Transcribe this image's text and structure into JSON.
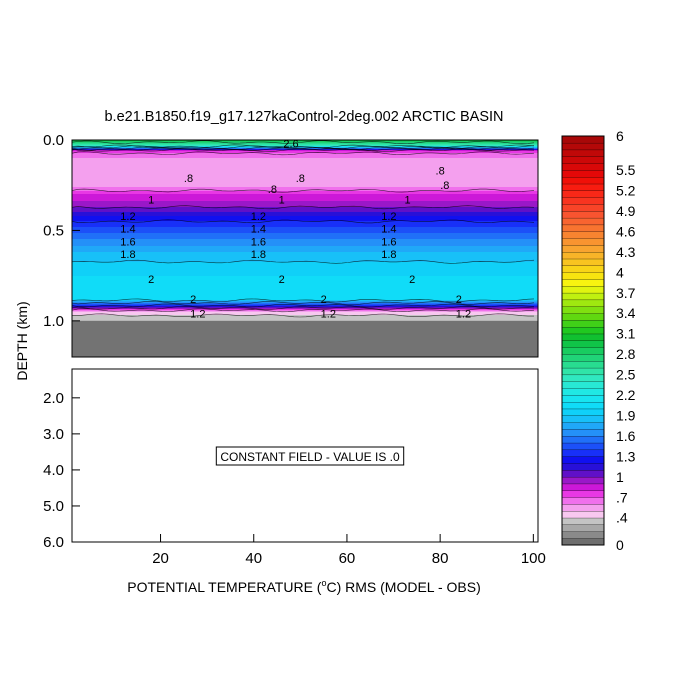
{
  "chart_data": {
    "type": "heatmap",
    "title": "b.e21.B1850.f19_g17.127kaControl-2deg.002 ARCTIC BASIN",
    "ylabel": "DEPTH (km)",
    "xlabel_prefix": "POTENTIAL TEMPERATURE (",
    "xlabel_unit_super": "o",
    "xlabel_suffix": "C) RMS (MODEL - OBS)",
    "xlim": [
      1,
      101
    ],
    "x_ticks": [
      "20",
      "40",
      "60",
      "80",
      "100"
    ],
    "x_tick_values": [
      20,
      40,
      60,
      80,
      100
    ],
    "upper_panel": {
      "ylim": [
        0,
        1.2
      ],
      "y_ticks": [
        "0.0",
        "0.5",
        "1.0"
      ],
      "y_tick_values": [
        0,
        0.5,
        1.0
      ],
      "bottom_depth_km": 1.0,
      "depth_profile": [
        {
          "depth": 0.0,
          "value": 3.0
        },
        {
          "depth": 0.03,
          "value": 2.5
        },
        {
          "depth": 0.06,
          "value": 0.75
        },
        {
          "depth": 0.1,
          "value": 0.6
        },
        {
          "depth": 0.15,
          "value": 0.55
        },
        {
          "depth": 0.25,
          "value": 0.55
        },
        {
          "depth": 0.3,
          "value": 0.8
        },
        {
          "depth": 0.36,
          "value": 0.95
        },
        {
          "depth": 0.42,
          "value": 1.2
        },
        {
          "depth": 0.48,
          "value": 1.4
        },
        {
          "depth": 0.55,
          "value": 1.6
        },
        {
          "depth": 0.62,
          "value": 1.8
        },
        {
          "depth": 0.7,
          "value": 1.95
        },
        {
          "depth": 0.75,
          "value": 2.0
        },
        {
          "depth": 0.88,
          "value": 2.05
        },
        {
          "depth": 0.92,
          "value": 1.2
        },
        {
          "depth": 0.95,
          "value": 0.5
        },
        {
          "depth": 0.98,
          "value": 0.35
        },
        {
          "depth": 1.0,
          "value": 0.3
        }
      ],
      "contour_labels": [
        {
          "text": "2.6",
          "x": 48,
          "depth": 0.02
        },
        {
          "text": ".8",
          "x": 26,
          "depth": 0.21
        },
        {
          "text": ".8",
          "x": 50,
          "depth": 0.21
        },
        {
          "text": ".8",
          "x": 80,
          "depth": 0.17
        },
        {
          "text": ".8",
          "x": 44,
          "depth": 0.27
        },
        {
          "text": ".8",
          "x": 81,
          "depth": 0.25
        },
        {
          "text": "1",
          "x": 18,
          "depth": 0.33
        },
        {
          "text": "1",
          "x": 46,
          "depth": 0.33
        },
        {
          "text": "1",
          "x": 73,
          "depth": 0.33
        },
        {
          "text": "1.2",
          "x": 13,
          "depth": 0.42
        },
        {
          "text": "1.2",
          "x": 41,
          "depth": 0.42
        },
        {
          "text": "1.2",
          "x": 69,
          "depth": 0.42
        },
        {
          "text": "1.4",
          "x": 13,
          "depth": 0.49
        },
        {
          "text": "1.4",
          "x": 41,
          "depth": 0.49
        },
        {
          "text": "1.4",
          "x": 69,
          "depth": 0.49
        },
        {
          "text": "1.6",
          "x": 13,
          "depth": 0.56
        },
        {
          "text": "1.6",
          "x": 41,
          "depth": 0.56
        },
        {
          "text": "1.6",
          "x": 69,
          "depth": 0.56
        },
        {
          "text": "1.8",
          "x": 13,
          "depth": 0.63
        },
        {
          "text": "1.8",
          "x": 41,
          "depth": 0.63
        },
        {
          "text": "1.8",
          "x": 69,
          "depth": 0.63
        },
        {
          "text": "2",
          "x": 18,
          "depth": 0.77
        },
        {
          "text": "2",
          "x": 46,
          "depth": 0.77
        },
        {
          "text": "2",
          "x": 74,
          "depth": 0.77
        },
        {
          "text": "2",
          "x": 27,
          "depth": 0.88
        },
        {
          "text": "2",
          "x": 55,
          "depth": 0.88
        },
        {
          "text": "2",
          "x": 84,
          "depth": 0.88
        },
        {
          "text": "1.2",
          "x": 28,
          "depth": 0.96
        },
        {
          "text": "1.2",
          "x": 56,
          "depth": 0.96
        },
        {
          "text": "1.2",
          "x": 85,
          "depth": 0.96
        }
      ]
    },
    "lower_panel": {
      "ylim": [
        1.2,
        6.0
      ],
      "y_ticks": [
        "2.0",
        "3.0",
        "4.0",
        "5.0",
        "6.0"
      ],
      "y_tick_values": [
        2,
        3,
        4,
        5,
        6
      ],
      "annotation": "CONSTANT FIELD - VALUE IS .0"
    },
    "colorbar": {
      "min": 0,
      "max": 6,
      "tick_labels": [
        "0",
        ".4",
        ".7",
        "1",
        "1.3",
        "1.6",
        "1.9",
        "2.2",
        "2.5",
        "2.8",
        "3.1",
        "3.4",
        "3.7",
        "4",
        "4.3",
        "4.6",
        "4.9",
        "5.2",
        "5.5",
        "6"
      ],
      "tick_values": [
        0,
        0.4,
        0.7,
        1,
        1.3,
        1.6,
        1.9,
        2.2,
        2.5,
        2.8,
        3.1,
        3.4,
        3.7,
        4,
        4.3,
        4.6,
        4.9,
        5.2,
        5.5,
        6
      ],
      "bands": [
        {
          "from": 0.0,
          "to": 0.1,
          "color": "#6e6e6e"
        },
        {
          "from": 0.1,
          "to": 0.2,
          "color": "#8a8a8a"
        },
        {
          "from": 0.2,
          "to": 0.3,
          "color": "#a8a8a8"
        },
        {
          "from": 0.3,
          "to": 0.4,
          "color": "#c4c4c4"
        },
        {
          "from": 0.4,
          "to": 0.5,
          "color": "#f8c8f0"
        },
        {
          "from": 0.5,
          "to": 0.6,
          "color": "#f4a0ee"
        },
        {
          "from": 0.6,
          "to": 0.7,
          "color": "#f070ec"
        },
        {
          "from": 0.7,
          "to": 0.8,
          "color": "#e838e4"
        },
        {
          "from": 0.8,
          "to": 0.9,
          "color": "#cc18d8"
        },
        {
          "from": 0.9,
          "to": 1.0,
          "color": "#9a18c8"
        },
        {
          "from": 1.0,
          "to": 1.1,
          "color": "#6010c8"
        },
        {
          "from": 1.1,
          "to": 1.2,
          "color": "#2810d8"
        },
        {
          "from": 1.2,
          "to": 1.3,
          "color": "#1010f0"
        },
        {
          "from": 1.3,
          "to": 1.4,
          "color": "#1830f8"
        },
        {
          "from": 1.4,
          "to": 1.5,
          "color": "#1c50f8"
        },
        {
          "from": 1.5,
          "to": 1.6,
          "color": "#2070f8"
        },
        {
          "from": 1.6,
          "to": 1.7,
          "color": "#2490f8"
        },
        {
          "from": 1.7,
          "to": 1.8,
          "color": "#20a8f8"
        },
        {
          "from": 1.8,
          "to": 1.9,
          "color": "#18c0f8"
        },
        {
          "from": 1.9,
          "to": 2.0,
          "color": "#10d0f8"
        },
        {
          "from": 2.0,
          "to": 2.1,
          "color": "#10dcf8"
        },
        {
          "from": 2.1,
          "to": 2.2,
          "color": "#18e4f0"
        },
        {
          "from": 2.2,
          "to": 2.3,
          "color": "#20e8e4"
        },
        {
          "from": 2.3,
          "to": 2.4,
          "color": "#28e8d4"
        },
        {
          "from": 2.4,
          "to": 2.5,
          "color": "#30e8c0"
        },
        {
          "from": 2.5,
          "to": 2.6,
          "color": "#30e4a8"
        },
        {
          "from": 2.6,
          "to": 2.7,
          "color": "#28dc90"
        },
        {
          "from": 2.7,
          "to": 2.8,
          "color": "#20d478"
        },
        {
          "from": 2.8,
          "to": 2.9,
          "color": "#18cc60"
        },
        {
          "from": 2.9,
          "to": 3.0,
          "color": "#10c448"
        },
        {
          "from": 3.0,
          "to": 3.1,
          "color": "#10c030"
        },
        {
          "from": 3.1,
          "to": 3.2,
          "color": "#20c820"
        },
        {
          "from": 3.2,
          "to": 3.3,
          "color": "#40d018"
        },
        {
          "from": 3.3,
          "to": 3.4,
          "color": "#60d810"
        },
        {
          "from": 3.4,
          "to": 3.5,
          "color": "#80e010"
        },
        {
          "from": 3.5,
          "to": 3.6,
          "color": "#a0e810"
        },
        {
          "from": 3.6,
          "to": 3.7,
          "color": "#c0f010"
        },
        {
          "from": 3.7,
          "to": 3.8,
          "color": "#e0f410"
        },
        {
          "from": 3.8,
          "to": 3.9,
          "color": "#f8f410"
        },
        {
          "from": 3.9,
          "to": 4.0,
          "color": "#f8e410"
        },
        {
          "from": 4.0,
          "to": 4.1,
          "color": "#f8d418"
        },
        {
          "from": 4.1,
          "to": 4.2,
          "color": "#f8c420"
        },
        {
          "from": 4.2,
          "to": 4.3,
          "color": "#f8b428"
        },
        {
          "from": 4.3,
          "to": 4.4,
          "color": "#f8a430"
        },
        {
          "from": 4.4,
          "to": 4.5,
          "color": "#f89430"
        },
        {
          "from": 4.5,
          "to": 4.6,
          "color": "#f88430"
        },
        {
          "from": 4.6,
          "to": 4.7,
          "color": "#f87430"
        },
        {
          "from": 4.7,
          "to": 4.8,
          "color": "#f86430"
        },
        {
          "from": 4.8,
          "to": 4.9,
          "color": "#f85430"
        },
        {
          "from": 4.9,
          "to": 5.0,
          "color": "#f84428"
        },
        {
          "from": 5.0,
          "to": 5.1,
          "color": "#f83420"
        },
        {
          "from": 5.1,
          "to": 5.2,
          "color": "#f82818"
        },
        {
          "from": 5.2,
          "to": 5.3,
          "color": "#f81c10"
        },
        {
          "from": 5.3,
          "to": 5.4,
          "color": "#f01008"
        },
        {
          "from": 5.4,
          "to": 5.5,
          "color": "#e40808"
        },
        {
          "from": 5.5,
          "to": 5.6,
          "color": "#d80808"
        },
        {
          "from": 5.6,
          "to": 5.7,
          "color": "#cc0808"
        },
        {
          "from": 5.7,
          "to": 5.8,
          "color": "#c00808"
        },
        {
          "from": 5.8,
          "to": 5.9,
          "color": "#b40808"
        },
        {
          "from": 5.9,
          "to": 6.0,
          "color": "#a80808"
        }
      ]
    }
  }
}
